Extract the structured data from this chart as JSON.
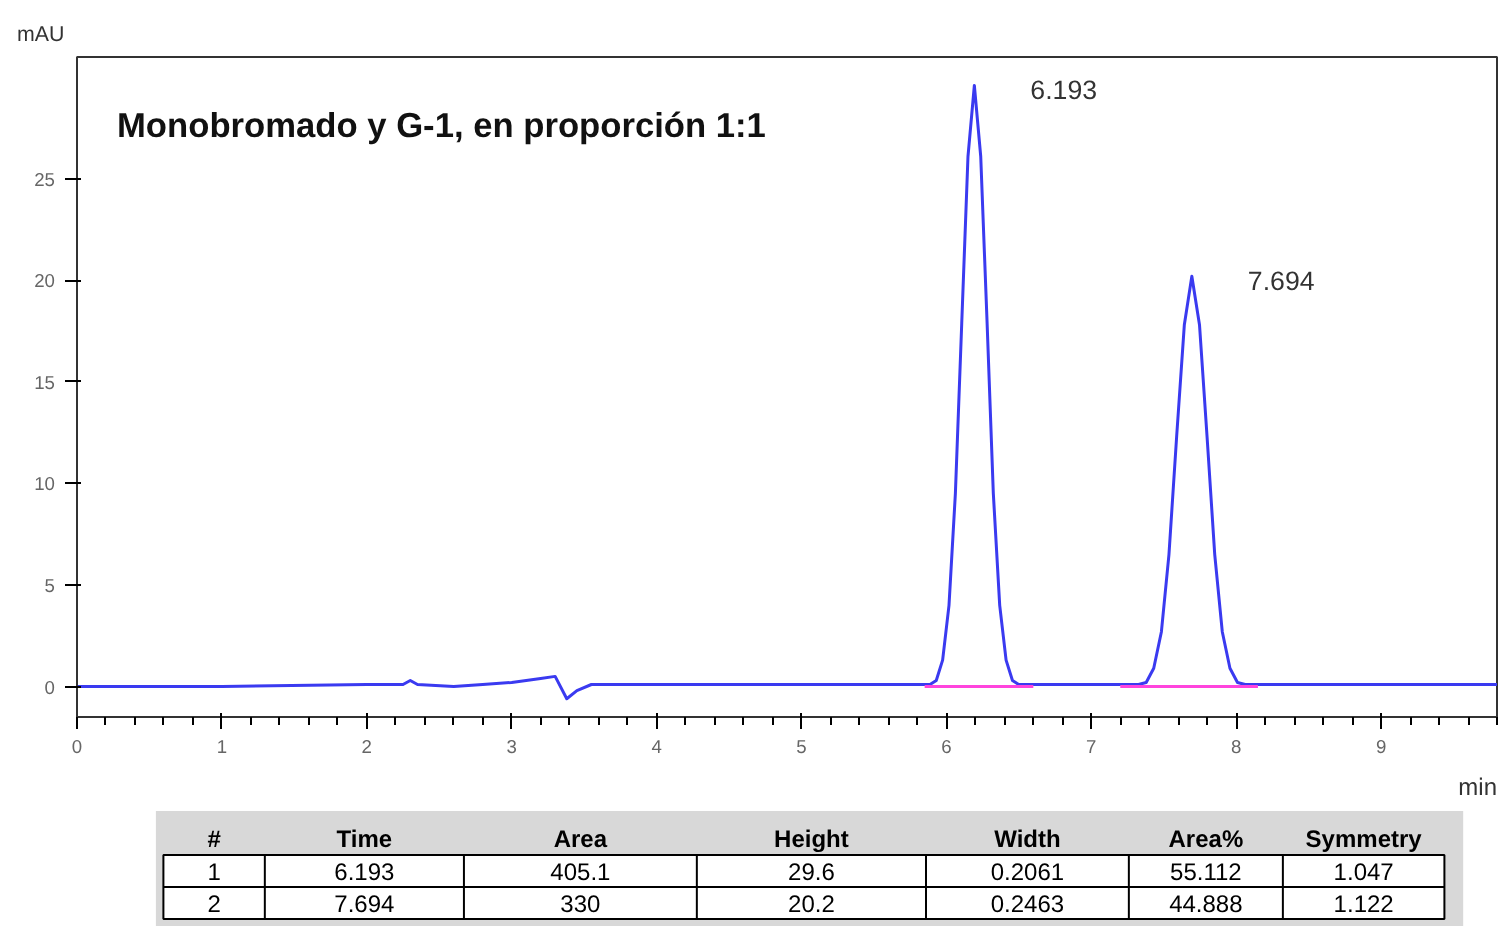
{
  "chart_data": {
    "type": "line",
    "title": "Monobromado y G-1, en proporción 1:1",
    "xlabel": "min",
    "ylabel": "mAU",
    "xlim": [
      0,
      9.8
    ],
    "ylim": [
      -1.5,
      31
    ],
    "xticks": [
      0,
      1,
      2,
      3,
      4,
      5,
      6,
      7,
      8,
      9
    ],
    "yticks": [
      0,
      5,
      10,
      15,
      20,
      25
    ],
    "grid": false,
    "marker": "none",
    "line_style": "solid",
    "series": [
      {
        "color": "#3a3af0",
        "x": [
          0,
          1.0,
          2.0,
          2.25,
          2.3,
          2.35,
          2.6,
          2.8,
          3.0,
          3.2,
          3.3,
          3.38,
          3.45,
          3.55,
          4.0,
          5.0,
          5.887,
          5.93,
          5.974,
          6.018,
          6.062,
          6.106,
          6.149,
          6.193,
          6.237,
          6.281,
          6.324,
          6.368,
          6.412,
          6.456,
          6.499,
          6.8,
          7.2,
          7.326,
          7.379,
          7.431,
          7.484,
          7.536,
          7.589,
          7.642,
          7.694,
          7.747,
          7.799,
          7.852,
          7.904,
          7.957,
          8.009,
          8.062,
          8.3,
          9.0,
          9.8
        ],
        "values": [
          0,
          0,
          0.1,
          0.1,
          0.3,
          0.1,
          0.0,
          0.1,
          0.2,
          0.4,
          0.5,
          -0.6,
          -0.2,
          0.1,
          0.1,
          0.1,
          0.1,
          0.3,
          1.3,
          4.0,
          9.5,
          17.9,
          26.1,
          29.6,
          26.1,
          17.9,
          9.5,
          4.0,
          1.3,
          0.3,
          0.1,
          0.1,
          0.1,
          0.1,
          0.2,
          0.9,
          2.7,
          6.5,
          12.3,
          17.8,
          20.2,
          17.8,
          12.3,
          6.5,
          2.7,
          0.9,
          0.2,
          0.1,
          0.1,
          0.1,
          0.1
        ]
      },
      {
        "color": "#ff44dd",
        "x": [
          5.85,
          6.6
        ],
        "values": [
          0,
          0
        ]
      },
      {
        "color": "#ff44dd",
        "x": [
          7.2,
          8.15
        ],
        "values": [
          0,
          0
        ]
      }
    ],
    "annotations": [
      {
        "text": "6.193",
        "x": 6.193,
        "y": 29.6
      },
      {
        "text": "7.694",
        "x": 7.694,
        "y": 20.2
      },
      "#",
      "Time",
      "Area",
      "Height",
      "Width",
      "Area%",
      "Symmetry",
      "1",
      "6.193",
      "405.1",
      "29.6",
      "0.2061",
      "55.112",
      "1.047",
      "2",
      "7.694",
      "330",
      "20.2",
      "0.2463",
      "44.888",
      "1.122"
    ]
  }
}
